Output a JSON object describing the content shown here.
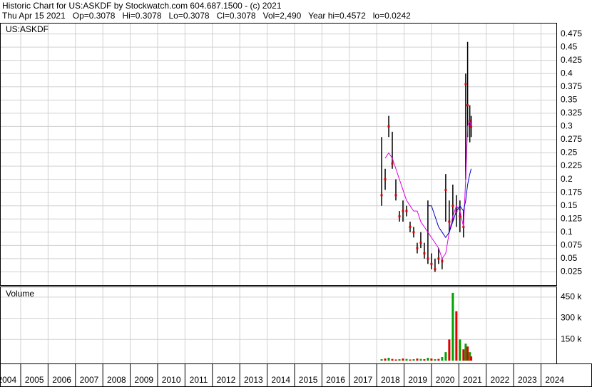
{
  "header": {
    "title": "Historic Chart for US:ASKDF by Stockwatch.com 604.687.1500 - (c) 2021",
    "quote": "Thu Apr 15 2021   Op=0.3078   Hi=0.3078   Lo=0.3078   Cl=0.3078   Vol=2,490   Year hi=0.4572   lo=0.0242"
  },
  "chart_data": [
    {
      "type": "ohlc",
      "title": "US:ASKDF",
      "x": [
        2018.18,
        2018.31,
        2018.44,
        2018.57,
        2018.7,
        2018.83,
        2018.96,
        2019.09,
        2019.22,
        2019.35,
        2019.48,
        2019.61,
        2019.74,
        2019.87,
        2020.0,
        2020.13,
        2020.26,
        2020.39,
        2020.52,
        2020.65,
        2020.78,
        2020.91,
        2021.04,
        2021.17,
        2021.25,
        2021.32,
        2021.4,
        2021.45
      ],
      "high": [
        0.28,
        0.22,
        0.32,
        0.29,
        0.2,
        0.14,
        0.16,
        0.15,
        0.12,
        0.11,
        0.08,
        0.1,
        0.08,
        0.16,
        0.06,
        0.05,
        0.07,
        0.05,
        0.21,
        0.16,
        0.19,
        0.17,
        0.16,
        0.14,
        0.4,
        0.46,
        0.34,
        0.32
      ],
      "low": [
        0.15,
        0.18,
        0.28,
        0.22,
        0.16,
        0.12,
        0.12,
        0.13,
        0.1,
        0.09,
        0.06,
        0.07,
        0.05,
        0.04,
        0.03,
        0.025,
        0.04,
        0.03,
        0.12,
        0.1,
        0.12,
        0.11,
        0.1,
        0.09,
        0.2,
        0.28,
        0.27,
        0.28
      ],
      "close": [
        0.17,
        0.2,
        0.3,
        0.23,
        0.17,
        0.13,
        0.14,
        0.14,
        0.11,
        0.1,
        0.07,
        0.08,
        0.06,
        0.05,
        0.04,
        0.03,
        0.05,
        0.045,
        0.18,
        0.12,
        0.15,
        0.14,
        0.13,
        0.11,
        0.38,
        0.34,
        0.31,
        0.3
      ],
      "close_color": "#e00000",
      "bar_color": "#000000",
      "series": [
        {
          "color": "#e000e0",
          "values": [
            null,
            0.24,
            0.25,
            0.24,
            0.22,
            0.2,
            0.18,
            0.16,
            0.15,
            0.14,
            0.14,
            0.12,
            0.11,
            0.1,
            0.09,
            0.08,
            0.07,
            0.05,
            0.06,
            0.1,
            0.13,
            0.15,
            0.14,
            0.11,
            0.2,
            0.3,
            0.31,
            0.3
          ]
        },
        {
          "color": "#0000c0",
          "values": [
            null,
            null,
            null,
            null,
            null,
            null,
            null,
            null,
            null,
            null,
            null,
            null,
            null,
            0.15,
            0.15,
            0.13,
            0.11,
            0.1,
            0.09,
            0.1,
            0.12,
            0.14,
            0.15,
            0.14,
            0.16,
            0.19,
            0.21,
            0.22
          ]
        }
      ],
      "xlim": [
        2004.245,
        2024.56
      ],
      "ylim": [
        0,
        0.496
      ],
      "yticks": [
        0.025,
        0.05,
        0.075,
        0.1,
        0.125,
        0.15,
        0.175,
        0.2,
        0.225,
        0.25,
        0.275,
        0.3,
        0.325,
        0.35,
        0.375,
        0.4,
        0.425,
        0.45,
        0.475
      ],
      "grid": true
    },
    {
      "type": "bar",
      "title": "Volume",
      "values": [
        10000,
        15000,
        20000,
        12000,
        8000,
        10000,
        15000,
        12000,
        8000,
        10000,
        15000,
        12000,
        10000,
        20000,
        15000,
        10000,
        12000,
        25000,
        60000,
        150000,
        480000,
        350000,
        150000,
        80000,
        120000,
        100000,
        60000,
        30000
      ],
      "colors": [
        "#00a000",
        "#e00000",
        "#00a000",
        "#e00000",
        "#e00000",
        "#00a000",
        "#e00000",
        "#00a000",
        "#e00000",
        "#00a000",
        "#e00000",
        "#00a000",
        "#e00000",
        "#00a000",
        "#e00000",
        "#00a000",
        "#e00000",
        "#00a000",
        "#00a000",
        "#e00000",
        "#00a000",
        "#e00000",
        "#00a000",
        "#e00000",
        "#00a000",
        "#e00000",
        "#00a000",
        "#e00000"
      ],
      "ylim": [
        0,
        520000
      ],
      "yticks": [
        {
          "value": 150000,
          "label": "150 k"
        },
        {
          "value": 300000,
          "label": "300 k"
        },
        {
          "value": 450000,
          "label": "450 k"
        }
      ],
      "xticks": [
        2004,
        2005,
        2006,
        2007,
        2008,
        2009,
        2010,
        2011,
        2012,
        2013,
        2014,
        2015,
        2016,
        2017,
        2018,
        2019,
        2020,
        2021,
        2022,
        2023,
        2024
      ],
      "grid": true
    }
  ]
}
